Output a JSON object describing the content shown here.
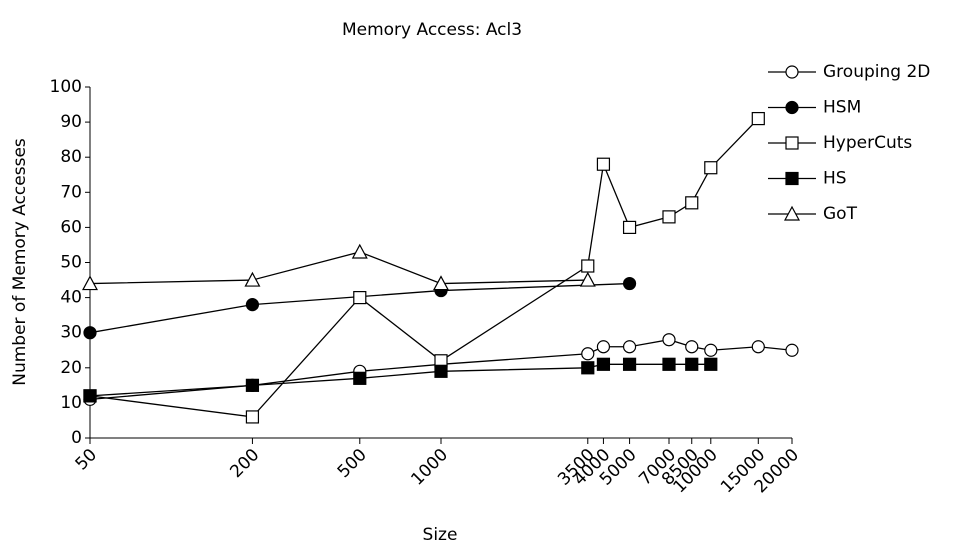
{
  "chart_data": {
    "type": "line",
    "title": "Memory Access: Acl3",
    "x_label": "Size",
    "y_label": "Number of Memory Accesses",
    "x_scale": "log",
    "xlim": [
      50,
      20000
    ],
    "xticks": [
      50,
      200,
      500,
      1000,
      3500,
      4000,
      5000,
      7000,
      8500,
      10000,
      15000,
      20000
    ],
    "ylim": [
      0,
      100
    ],
    "yticks": [
      0,
      10,
      20,
      30,
      40,
      50,
      60,
      70,
      80,
      90,
      100
    ],
    "legend": "upper-right",
    "series": [
      {
        "name": "Grouping 2D",
        "marker": "circle-open",
        "color": "#000000",
        "x": [
          50,
          200,
          500,
          1000,
          3500,
          4000,
          5000,
          7000,
          8500,
          10000,
          15000,
          20000
        ],
        "values": [
          11,
          15,
          19,
          21,
          24,
          26,
          26,
          28,
          26,
          25,
          26,
          25
        ]
      },
      {
        "name": "HSM",
        "marker": "circle-filled",
        "color": "#000000",
        "x": [
          50,
          200,
          1000,
          5000
        ],
        "values": [
          30,
          38,
          42,
          44
        ]
      },
      {
        "name": "HyperCuts",
        "marker": "square-open",
        "color": "#000000",
        "x": [
          50,
          200,
          500,
          1000,
          3500,
          4000,
          5000,
          7000,
          8500,
          10000,
          15000
        ],
        "values": [
          12,
          6,
          40,
          22,
          49,
          78,
          60,
          63,
          67,
          77,
          91
        ]
      },
      {
        "name": "HS",
        "marker": "square-filled",
        "color": "#000000",
        "x": [
          50,
          200,
          500,
          1000,
          3500,
          4000,
          5000,
          7000,
          8500,
          10000
        ],
        "values": [
          12,
          15,
          17,
          19,
          20,
          21,
          21,
          21,
          21,
          21
        ]
      },
      {
        "name": "GoT",
        "marker": "triangle-open",
        "color": "#000000",
        "x": [
          50,
          200,
          500,
          1000,
          3500
        ],
        "values": [
          44,
          45,
          53,
          44,
          45
        ]
      }
    ]
  }
}
